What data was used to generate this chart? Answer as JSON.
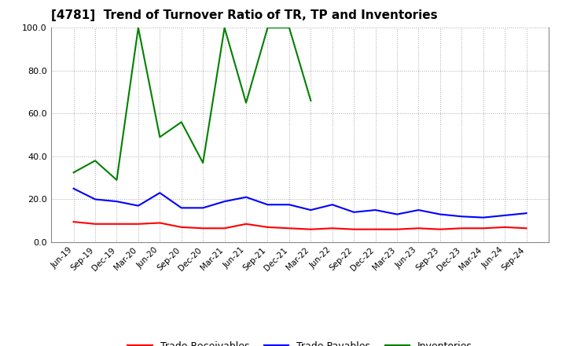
{
  "title": "[4781]  Trend of Turnover Ratio of TR, TP and Inventories",
  "xlabel": "",
  "ylabel": "",
  "ylim": [
    0.0,
    100.0
  ],
  "yticks": [
    0.0,
    20.0,
    40.0,
    60.0,
    80.0,
    100.0
  ],
  "x_labels": [
    "Jun-19",
    "Sep-19",
    "Dec-19",
    "Mar-20",
    "Jun-20",
    "Sep-20",
    "Dec-20",
    "Mar-21",
    "Jun-21",
    "Sep-21",
    "Dec-21",
    "Mar-22",
    "Jun-22",
    "Sep-22",
    "Dec-22",
    "Mar-23",
    "Jun-23",
    "Sep-23",
    "Dec-23",
    "Mar-24",
    "Jun-24",
    "Sep-24"
  ],
  "trade_receivables": [
    9.5,
    8.5,
    8.5,
    8.5,
    9.0,
    7.0,
    6.5,
    6.5,
    8.5,
    7.0,
    6.5,
    6.0,
    6.5,
    6.0,
    6.0,
    6.0,
    6.5,
    6.0,
    6.5,
    6.5,
    7.0,
    6.5
  ],
  "trade_payables": [
    25.0,
    20.0,
    19.0,
    17.0,
    23.0,
    16.0,
    16.0,
    19.0,
    21.0,
    17.5,
    17.5,
    15.0,
    17.5,
    14.0,
    15.0,
    13.0,
    15.0,
    13.0,
    12.0,
    11.5,
    12.5,
    13.5
  ],
  "inventories": [
    32.5,
    38.0,
    29.0,
    100.0,
    49.0,
    56.0,
    37.0,
    100.0,
    65.0,
    100.0,
    100.0,
    66.0,
    null,
    null,
    null,
    null,
    null,
    null,
    null,
    null,
    null,
    null
  ],
  "tr_color": "#ff0000",
  "tp_color": "#0000ff",
  "inv_color": "#008000",
  "bg_color": "#ffffff",
  "grid_color": "#aaaaaa",
  "legend_labels": [
    "Trade Receivables",
    "Trade Payables",
    "Inventories"
  ]
}
